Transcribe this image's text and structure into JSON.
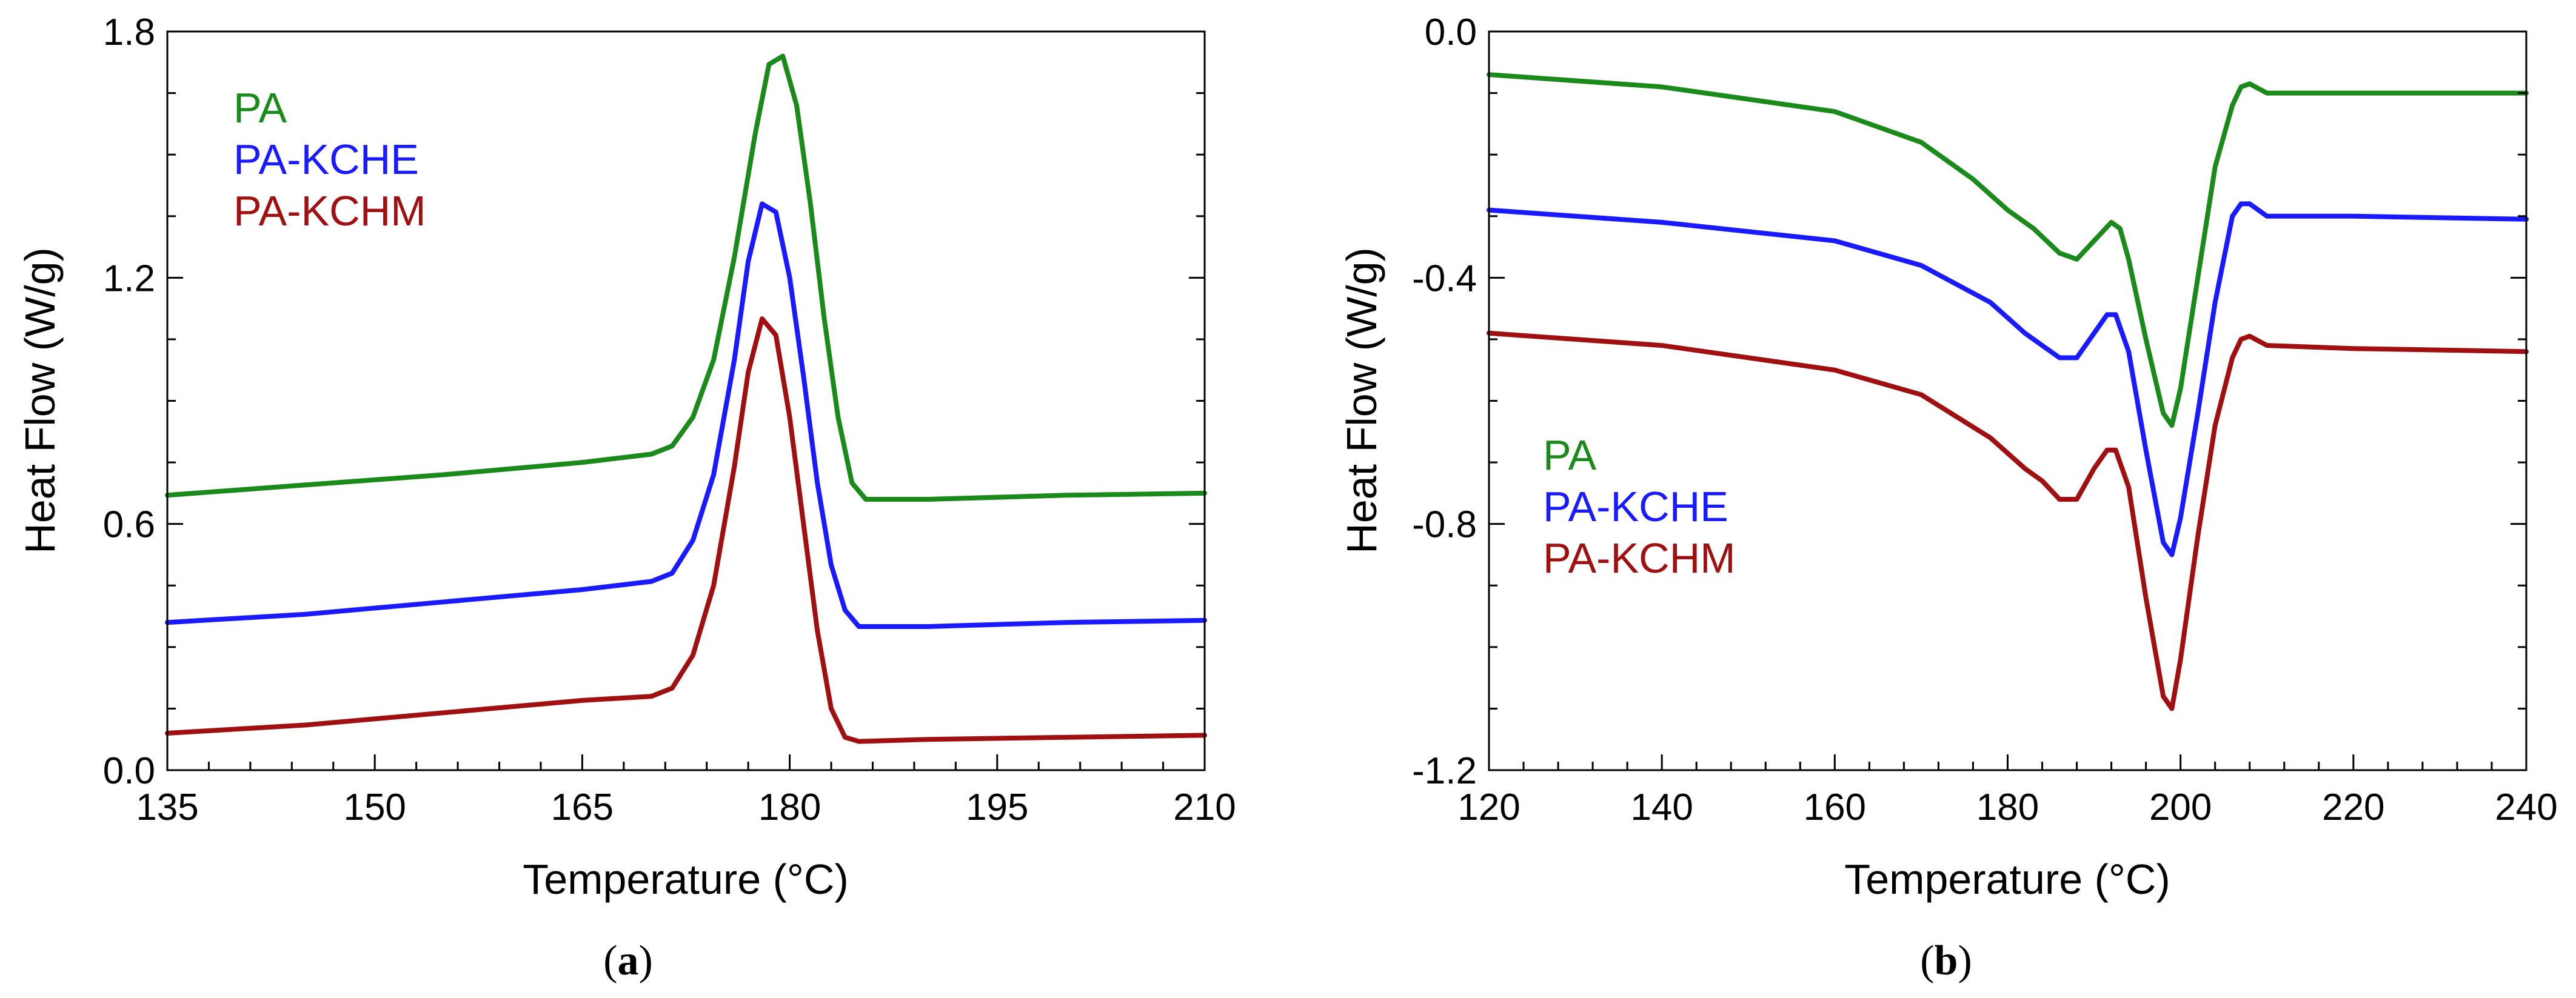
{
  "colors": {
    "PA": "#1a8a1a",
    "PA-KCHE": "#1a1aff",
    "PA-KCHM": "#a01010"
  },
  "chart_data": [
    {
      "type": "line",
      "panel_label": "a",
      "xlabel": "Temperature (°C)",
      "ylabel": "Heat Flow (W/g)",
      "xlim": [
        135,
        210
      ],
      "ylim": [
        0,
        1.8
      ],
      "x_ticks": [
        135,
        150,
        165,
        180,
        195,
        210
      ],
      "x_tick_labels": [
        "135",
        "150",
        "165",
        "180",
        "195",
        "210"
      ],
      "y_ticks": [
        0,
        0.6,
        1.2,
        1.8
      ],
      "y_tick_labels": [
        "0.0",
        "0.6",
        "1.2",
        "1.8"
      ],
      "legend_position": "top-left",
      "series": [
        {
          "name": "PA",
          "color": "#1a8a1a",
          "x": [
            135,
            145,
            155,
            165,
            170,
            171.5,
            173,
            174.5,
            176,
            177.5,
            178.5,
            179.5,
            180.5,
            181.5,
            182.5,
            183.5,
            184.5,
            185.5,
            190,
            200,
            210
          ],
          "y": [
            0.67,
            0.695,
            0.72,
            0.75,
            0.77,
            0.79,
            0.86,
            1.0,
            1.25,
            1.55,
            1.72,
            1.74,
            1.62,
            1.38,
            1.1,
            0.86,
            0.7,
            0.66,
            0.66,
            0.67,
            0.675
          ]
        },
        {
          "name": "PA-KCHE",
          "color": "#1a1aff",
          "x": [
            135,
            145,
            155,
            165,
            170,
            171.5,
            173,
            174.5,
            176,
            177,
            178,
            179,
            180,
            181,
            182,
            183,
            184,
            185,
            190,
            200,
            210
          ],
          "y": [
            0.36,
            0.38,
            0.41,
            0.44,
            0.46,
            0.48,
            0.56,
            0.72,
            1.0,
            1.24,
            1.38,
            1.36,
            1.2,
            0.96,
            0.7,
            0.5,
            0.39,
            0.35,
            0.35,
            0.36,
            0.365
          ]
        },
        {
          "name": "PA-KCHM",
          "color": "#a01010",
          "x": [
            135,
            145,
            155,
            165,
            170,
            171.5,
            173,
            174.5,
            176,
            177,
            178,
            179,
            180,
            181,
            182,
            183,
            184,
            185,
            190,
            200,
            210
          ],
          "y": [
            0.09,
            0.11,
            0.14,
            0.17,
            0.18,
            0.2,
            0.28,
            0.45,
            0.74,
            0.97,
            1.1,
            1.06,
            0.86,
            0.6,
            0.34,
            0.15,
            0.08,
            0.07,
            0.075,
            0.08,
            0.085
          ]
        }
      ]
    },
    {
      "type": "line",
      "panel_label": "b",
      "xlabel": "Temperature (°C)",
      "ylabel": "Heat Flow (W/g)",
      "xlim": [
        120,
        240
      ],
      "ylim": [
        -1.2,
        0
      ],
      "x_ticks": [
        120,
        140,
        160,
        180,
        200,
        220,
        240
      ],
      "x_tick_labels": [
        "120",
        "140",
        "160",
        "180",
        "200",
        "220",
        "240"
      ],
      "y_ticks": [
        0,
        -0.4,
        -0.8,
        -1.2
      ],
      "y_tick_labels": [
        "0.0",
        "-0.4",
        "-0.8",
        "-1.2"
      ],
      "legend_position": "bottom-left",
      "series": [
        {
          "name": "PA",
          "color": "#1a8a1a",
          "x": [
            120,
            140,
            160,
            170,
            176,
            180,
            183,
            186,
            188,
            190,
            192,
            193,
            194,
            196,
            198,
            199,
            200,
            202,
            204,
            206,
            207,
            208,
            210,
            220,
            240
          ],
          "y": [
            -0.07,
            -0.09,
            -0.13,
            -0.18,
            -0.24,
            -0.29,
            -0.32,
            -0.36,
            -0.37,
            -0.34,
            -0.31,
            -0.32,
            -0.37,
            -0.5,
            -0.62,
            -0.64,
            -0.58,
            -0.4,
            -0.22,
            -0.12,
            -0.09,
            -0.085,
            -0.1,
            -0.1,
            -0.1
          ]
        },
        {
          "name": "PA-KCHE",
          "color": "#1a1aff",
          "x": [
            120,
            140,
            160,
            170,
            178,
            182,
            184,
            186,
            188,
            190,
            191.5,
            192.5,
            194,
            196,
            198,
            199,
            200,
            202,
            204,
            206,
            207,
            208,
            210,
            220,
            240
          ],
          "y": [
            -0.29,
            -0.31,
            -0.34,
            -0.38,
            -0.44,
            -0.49,
            -0.51,
            -0.53,
            -0.53,
            -0.49,
            -0.46,
            -0.46,
            -0.52,
            -0.68,
            -0.83,
            -0.85,
            -0.79,
            -0.62,
            -0.44,
            -0.3,
            -0.28,
            -0.28,
            -0.3,
            -0.3,
            -0.305
          ]
        },
        {
          "name": "PA-KCHM",
          "color": "#a01010",
          "x": [
            120,
            140,
            160,
            170,
            178,
            182,
            184,
            186,
            188,
            190,
            191.5,
            192.5,
            194,
            196,
            198,
            199,
            200,
            202,
            204,
            206,
            207,
            208,
            210,
            220,
            240
          ],
          "y": [
            -0.49,
            -0.51,
            -0.55,
            -0.59,
            -0.66,
            -0.71,
            -0.73,
            -0.76,
            -0.76,
            -0.71,
            -0.68,
            -0.68,
            -0.74,
            -0.92,
            -1.08,
            -1.1,
            -1.02,
            -0.82,
            -0.64,
            -0.53,
            -0.5,
            -0.495,
            -0.51,
            -0.515,
            -0.52
          ]
        }
      ]
    }
  ]
}
